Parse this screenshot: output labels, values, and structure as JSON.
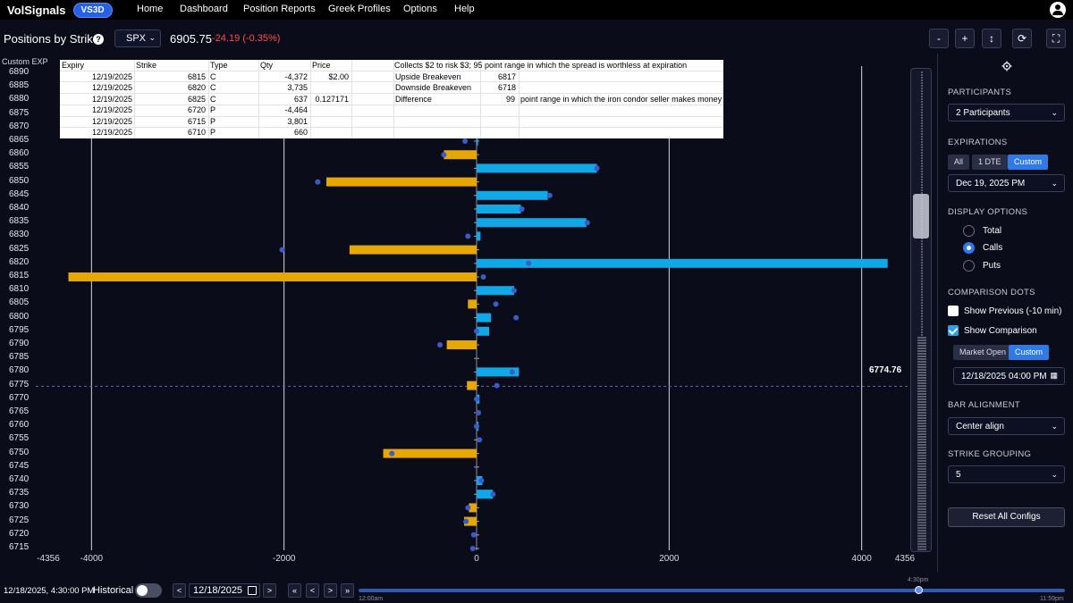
{
  "nav": {
    "brand": "VolSignals",
    "badge": "VS3D",
    "links": [
      "Home",
      "Dashboard",
      "Position Reports",
      "Greek Profiles",
      "Options",
      "Help"
    ]
  },
  "header": {
    "title": "Positions by Strike",
    "symbol": "SPX",
    "price": "6905.75",
    "change": "-24.19 (-0.35%)",
    "tools": [
      "-",
      "+",
      "↕",
      "⟳",
      "⛶"
    ]
  },
  "chart": {
    "exp_label": "Custom EXP",
    "spot_value": "6774.76",
    "x_tick_labels": [
      "-4356",
      "-4000",
      "-2000",
      "0",
      "2000",
      "4000",
      "4356"
    ]
  },
  "chart_data": {
    "type": "bar",
    "orientation": "horizontal",
    "xlim": [
      -4356,
      4356
    ],
    "spot": 6774.76,
    "strikes": [
      6890,
      6885,
      6880,
      6875,
      6870,
      6865,
      6860,
      6855,
      6850,
      6845,
      6840,
      6835,
      6830,
      6825,
      6820,
      6815,
      6810,
      6805,
      6800,
      6795,
      6790,
      6785,
      6780,
      6775,
      6770,
      6765,
      6760,
      6755,
      6750,
      6745,
      6740,
      6735,
      6730,
      6725,
      6720,
      6715
    ],
    "series": [
      {
        "values": [
          0,
          0,
          0,
          0,
          0,
          15,
          -340,
          1250,
          -1560,
          740,
          460,
          1140,
          40,
          -1320,
          4270,
          -4240,
          390,
          -90,
          150,
          130,
          -310,
          0,
          440,
          -100,
          30,
          0,
          20,
          0,
          -970,
          0,
          60,
          170,
          -80,
          -130,
          0,
          0
        ],
        "comparison": [
          0,
          0,
          0,
          0,
          0,
          -120,
          -340,
          1250,
          -1650,
          760,
          470,
          1150,
          -90,
          -2020,
          540,
          70,
          390,
          200,
          410,
          0,
          -380,
          0,
          370,
          210,
          0,
          20,
          0,
          30,
          -880,
          0,
          50,
          170,
          -90,
          -110,
          -30,
          -40
        ]
      }
    ]
  },
  "sheet": {
    "headers": [
      "Expiry",
      "Strike",
      "Type",
      "Qty",
      "Price"
    ],
    "rows": [
      [
        "12/19/2025",
        "6815",
        "C",
        "-4,372",
        "$2.00"
      ],
      [
        "12/19/2025",
        "6820",
        "C",
        "3,735",
        ""
      ],
      [
        "12/19/2025",
        "6825",
        "C",
        "637",
        "0.127171"
      ],
      [
        "12/19/2025",
        "6720",
        "P",
        "-4,464",
        ""
      ],
      [
        "12/19/2025",
        "6715",
        "P",
        "3,801",
        ""
      ],
      [
        "12/19/2025",
        "6710",
        "P",
        "660",
        ""
      ]
    ],
    "note": "Collects $2 to risk $3; 95 point range in which the spread is worthless at expiration",
    "upside_label": "Upside Breakeven",
    "upside_value": "6817",
    "downside_label": "Downside Breakeven",
    "downside_value": "6718",
    "diff_label": "Difference",
    "diff_value": "99",
    "diff_note": "point range in which the iron condor seller makes money"
  },
  "panel": {
    "participants_title": "PARTICIPANTS",
    "participants_value": "2 Participants",
    "expirations_title": "EXPIRATIONS",
    "exp_pills": [
      "All",
      "1 DTE",
      "Custom"
    ],
    "exp_date": "Dec 19, 2025 PM",
    "display_title": "DISPLAY OPTIONS",
    "display_options": [
      "Total",
      "Calls",
      "Puts"
    ],
    "display_selected": "Calls",
    "comparison_title": "COMPARISON DOTS",
    "show_previous": "Show Previous (-10 min)",
    "show_comparison": "Show Comparison",
    "compare_pills": [
      "Market Open",
      "Custom"
    ],
    "compare_datetime": "12/18/2025 04:00 PM",
    "alignment_title": "BAR ALIGNMENT",
    "alignment_value": "Center align",
    "grouping_title": "STRIKE GROUPING",
    "grouping_value": "5",
    "reset_label": "Reset All Configs"
  },
  "bottom": {
    "timestamp": "12/18/2025, 4:30:00 PM",
    "historical_label": "Historical",
    "date": "12/18/2025",
    "tl_start": "12:00am",
    "tl_end": "11:59pm",
    "tl_current": "4:30pm",
    "nav_buttons": [
      "<",
      ">",
      "«",
      "<",
      ">",
      "»"
    ]
  },
  "colors": {
    "call": "#11a8e8",
    "put": "#e6a800",
    "dot": "#3b5bc7"
  }
}
